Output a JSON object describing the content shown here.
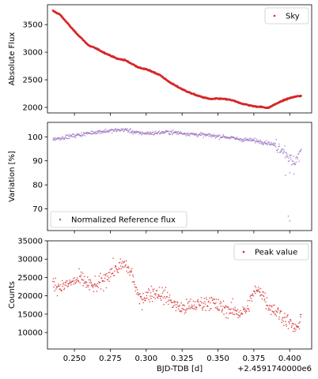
{
  "chart_data": [
    {
      "type": "scatter",
      "panel": "top",
      "xlim": [
        0.2312,
        0.4153
      ],
      "ylim": [
        1900,
        3860
      ],
      "yticks": [
        2000,
        2500,
        3000,
        3500
      ],
      "ylabel": "Absolute Flux",
      "legend": "top-right",
      "series": [
        {
          "name": "Sky",
          "color": "#d62728",
          "style": "dense-dots",
          "x": [
            0.235,
            0.24,
            0.245,
            0.25,
            0.255,
            0.26,
            0.265,
            0.27,
            0.275,
            0.28,
            0.285,
            0.29,
            0.295,
            0.3,
            0.305,
            0.31,
            0.315,
            0.32,
            0.325,
            0.33,
            0.335,
            0.34,
            0.345,
            0.35,
            0.355,
            0.36,
            0.365,
            0.37,
            0.375,
            0.38,
            0.385,
            0.39,
            0.395,
            0.4,
            0.405,
            0.408
          ],
          "values": [
            3750,
            3680,
            3530,
            3380,
            3250,
            3120,
            3070,
            3000,
            2940,
            2880,
            2860,
            2790,
            2720,
            2690,
            2640,
            2580,
            2480,
            2400,
            2330,
            2270,
            2220,
            2180,
            2150,
            2160,
            2150,
            2130,
            2080,
            2050,
            2020,
            2010,
            1990,
            2060,
            2120,
            2170,
            2200,
            2210
          ]
        }
      ]
    },
    {
      "type": "scatter",
      "panel": "middle",
      "xlim": [
        0.2312,
        0.4153
      ],
      "ylim": [
        61,
        106
      ],
      "yticks": [
        70,
        80,
        90,
        100
      ],
      "ylabel": "Variation [%]",
      "legend": "bottom-left",
      "series": [
        {
          "name": "Normalized Reference flux",
          "color": "#9467bd",
          "style": "scatter",
          "x": [
            0.235,
            0.245,
            0.255,
            0.265,
            0.275,
            0.285,
            0.295,
            0.305,
            0.315,
            0.325,
            0.335,
            0.345,
            0.355,
            0.365,
            0.375,
            0.385,
            0.39,
            0.395,
            0.398,
            0.4,
            0.402,
            0.405,
            0.408
          ],
          "values": [
            99,
            100,
            101,
            102,
            102.5,
            103,
            101.5,
            101.5,
            102,
            101.5,
            101,
            100.5,
            100,
            99,
            98.5,
            97.5,
            96.5,
            95,
            93,
            91,
            89,
            91,
            94
          ]
        }
      ]
    },
    {
      "type": "scatter",
      "panel": "bottom",
      "xlim": [
        0.2312,
        0.4153
      ],
      "ylim": [
        5500,
        35000
      ],
      "yticks": [
        10000,
        15000,
        20000,
        25000,
        30000,
        35000
      ],
      "ylabel": "Counts",
      "xlabel": "BJD-TDB [d]",
      "xticks": [
        0.25,
        0.275,
        0.3,
        0.325,
        0.35,
        0.375,
        0.4
      ],
      "xtick_labels": [
        "0.250",
        "0.275",
        "0.300",
        "0.325",
        "0.350",
        "0.375",
        "0.400"
      ],
      "x_offset_label": "+2.4591740000e6",
      "legend": "top-right",
      "series": [
        {
          "name": "Peak value",
          "color": "#d62728",
          "style": "scatter",
          "x": [
            0.235,
            0.24,
            0.245,
            0.25,
            0.255,
            0.26,
            0.265,
            0.27,
            0.275,
            0.28,
            0.285,
            0.29,
            0.295,
            0.3,
            0.305,
            0.31,
            0.315,
            0.32,
            0.325,
            0.33,
            0.335,
            0.34,
            0.345,
            0.35,
            0.355,
            0.36,
            0.365,
            0.37,
            0.375,
            0.38,
            0.385,
            0.39,
            0.395,
            0.4,
            0.405,
            0.408
          ],
          "values": [
            23500,
            22500,
            23000,
            24000,
            24500,
            23000,
            22500,
            24000,
            26500,
            27500,
            28500,
            26000,
            19000,
            20000,
            21000,
            20500,
            19500,
            17500,
            16500,
            17000,
            17500,
            18000,
            18500,
            17000,
            16500,
            16000,
            15500,
            16000,
            21000,
            21500,
            17500,
            16000,
            14500,
            12500,
            10500,
            15000
          ]
        }
      ]
    }
  ]
}
